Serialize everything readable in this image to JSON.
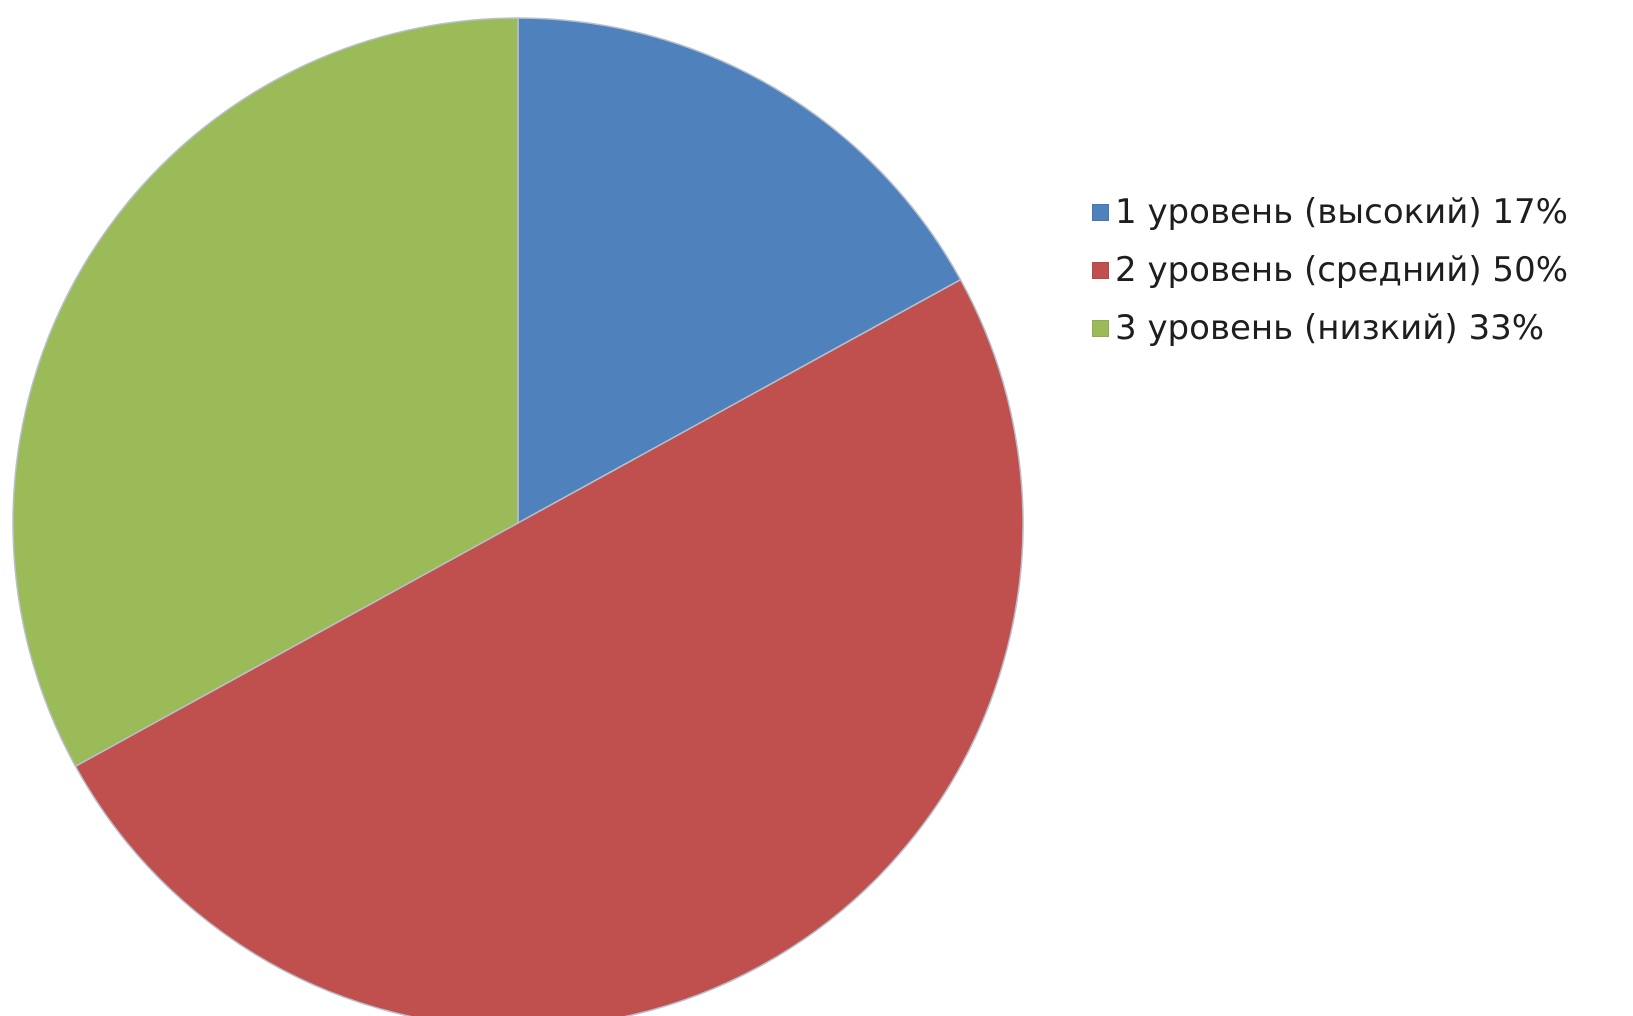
{
  "chart_data": {
    "type": "pie",
    "title": "",
    "legend_position": "right",
    "slices": [
      {
        "label": "1 уровень (высокий) 17%",
        "value": 17,
        "color": "#4f81bd"
      },
      {
        "label": "2 уровень (средний) 50%",
        "value": 50,
        "color": "#c0504d"
      },
      {
        "label": "3 уровень (низкий) 33%",
        "value": 33,
        "color": "#9bbb59"
      }
    ]
  }
}
